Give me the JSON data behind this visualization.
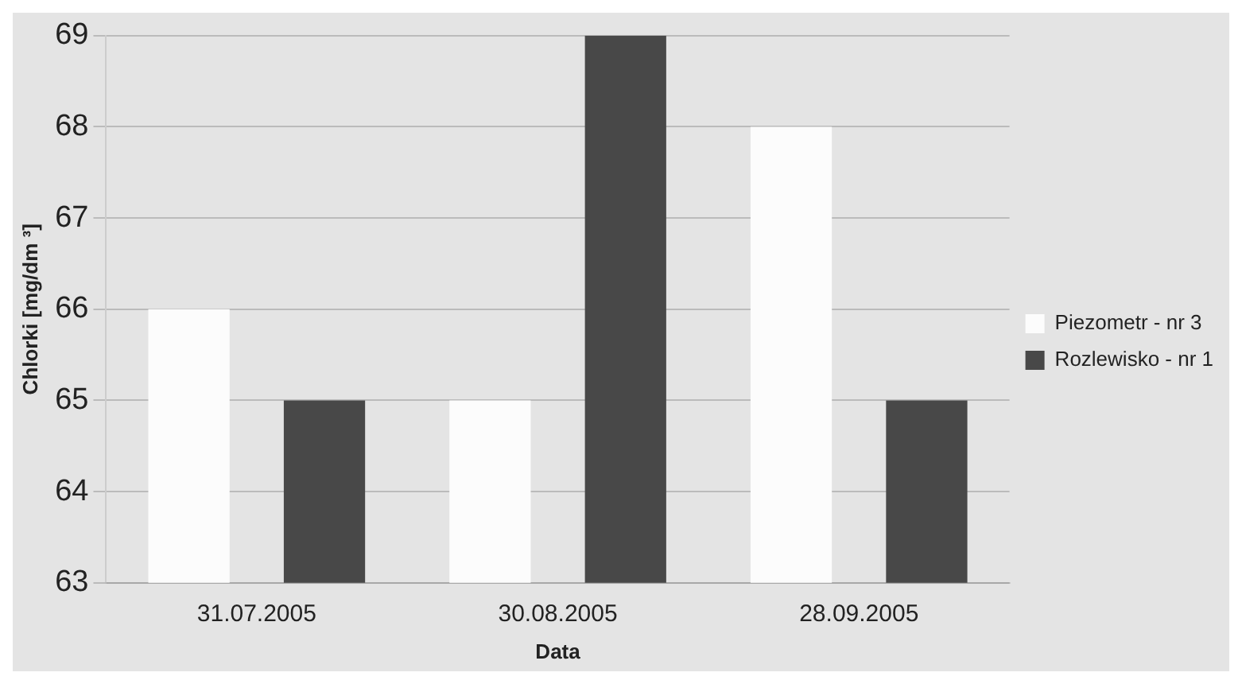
{
  "chart_data": {
    "type": "bar",
    "xlabel": "Data",
    "ylabel": "Chlorki [mg/dm ³]",
    "categories": [
      "31.07.2005",
      "30.08.2005",
      "28.09.2005"
    ],
    "series": [
      {
        "name": "Piezometr - nr 3",
        "color": "#fcfcfc",
        "values": [
          66,
          65,
          68
        ]
      },
      {
        "name": "Rozlewisko - nr 1",
        "color": "#484848",
        "values": [
          65,
          69,
          65
        ]
      }
    ],
    "ylim": [
      63,
      69
    ],
    "yticks": [
      63,
      64,
      65,
      66,
      67,
      68,
      69
    ],
    "grid": "y",
    "legend": "right"
  }
}
